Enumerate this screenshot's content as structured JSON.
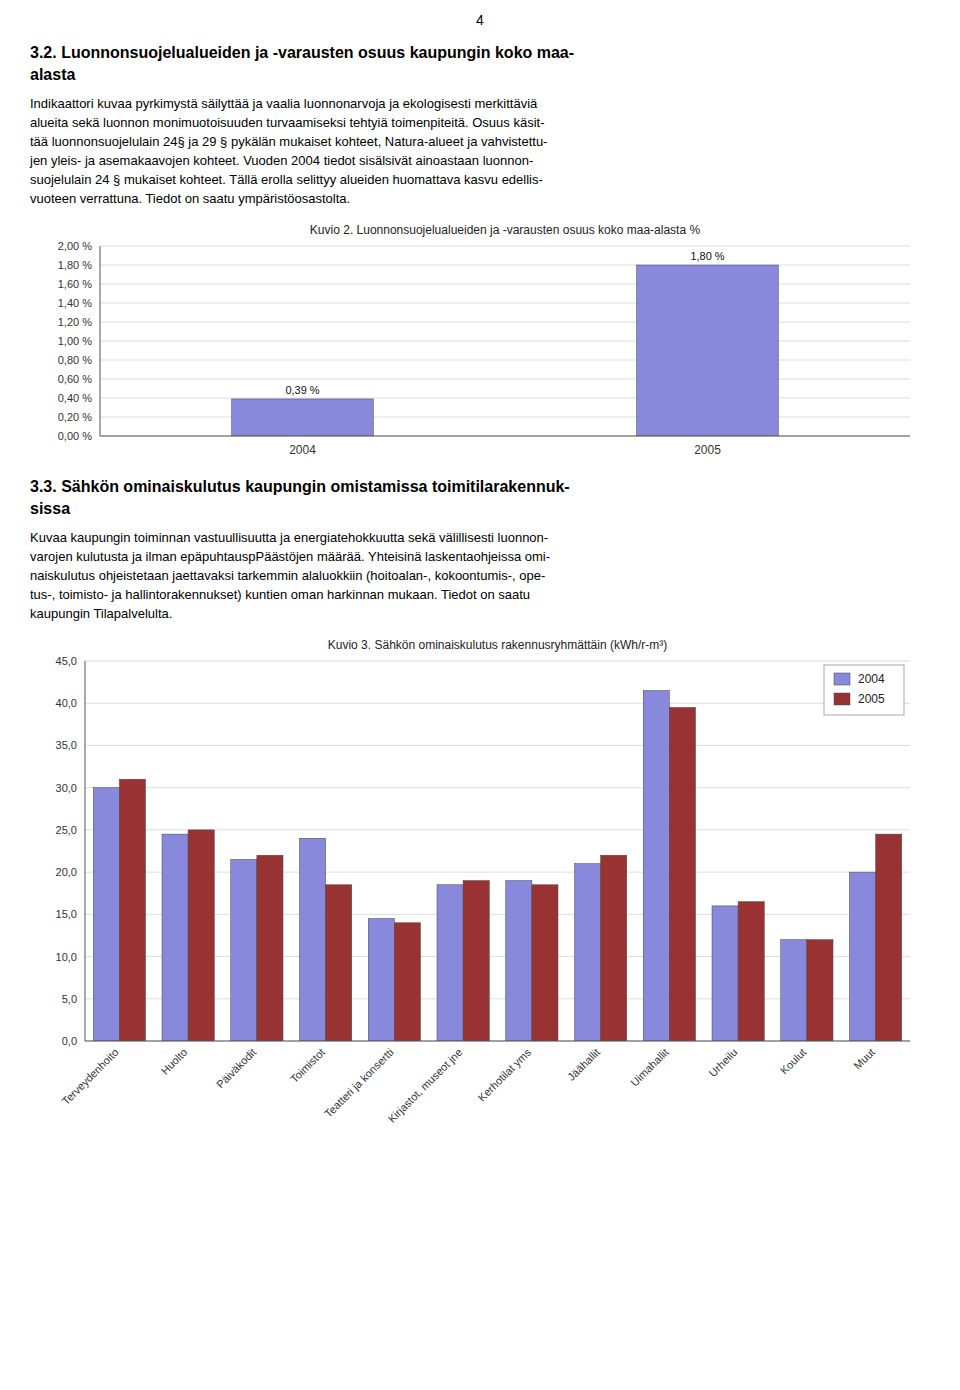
{
  "page_number": "4",
  "sections": [
    {
      "title_lines": [
        "3.2. Luonnonsuojelualueiden ja -varausten osuus kaupungin koko maa-",
        "alasta"
      ],
      "body_lines": [
        "Indikaattori kuvaa pyrkimystä säilyttää ja vaalia luonnonarvoja ja ekologisesti merkittäviä",
        "alueita sekä luonnon monimuotoisuuden turvaamiseksi tehtyiä toimenpiteitä. Osuus käsit-",
        "tää luonnonsuojelulain 24§ ja 29 § pykälän mukaiset kohteet, Natura-alueet ja vahvistettu-",
        "jen yleis- ja asemakaavojen kohteet. Vuoden 2004 tiedot sisälsivät ainoastaan luonnon-",
        "suojelulain 24 § mukaiset kohteet. Tällä erolla selittyy alueiden huomattava kasvu edellis-",
        "vuoteen verrattuna. Tiedot on saatu ympäristöosastolta."
      ]
    },
    {
      "title_lines": [
        "3.3. Sähkön ominaiskulutus kaupungin omistamissa toimitilarakennuk-",
        "sissa"
      ],
      "body_lines": [
        "Kuvaa kaupungin toiminnan vastuullisuutta ja energiatehokkuutta sekä välillisesti luonnon-",
        "varojen kulutusta ja ilman epäpuhtauspPäästöjen määrää. Yhteisinä laskentaohjeissa omi-",
        "naiskulutus ohjeistetaan jaettavaksi tarkemmin alaluokkiin (hoitoalan-, kokoontumis-, ope-",
        "tus-, toimisto- ja hallintorakennukset) kuntien oman harkinnan mukaan. Tiedot on saatu",
        "kaupungin Tilapalvelulta."
      ]
    }
  ],
  "chart_data": [
    {
      "type": "bar",
      "title": "Kuvio 2. Luonnonsuojelualueiden ja -varausten osuus koko maa-alasta %",
      "categories": [
        "2004",
        "2005"
      ],
      "values": [
        0.39,
        1.8
      ],
      "value_labels": [
        "0,39 %",
        "1,80 %"
      ],
      "data_labels": true,
      "color": "#8888dd",
      "ylim": [
        0.0,
        2.0
      ],
      "yticks": [
        {
          "value": 0.0,
          "label": "0,00 %"
        },
        {
          "value": 0.2,
          "label": "0,20 %"
        },
        {
          "value": 0.4,
          "label": "0,40 %"
        },
        {
          "value": 0.6,
          "label": "0,60 %"
        },
        {
          "value": 0.8,
          "label": "0,80 %"
        },
        {
          "value": 1.0,
          "label": "1,00 %"
        },
        {
          "value": 1.2,
          "label": "1,20 %"
        },
        {
          "value": 1.4,
          "label": "1,40 %"
        },
        {
          "value": 1.6,
          "label": "1,60 %"
        },
        {
          "value": 1.8,
          "label": "1,80 %"
        },
        {
          "value": 2.0,
          "label": "2,00 %"
        }
      ],
      "grid": true
    },
    {
      "type": "bar",
      "title": "Kuvio 3. Sähkön ominaiskulutus rakennusryhmättäin (kWh/r-m³)",
      "categories": [
        "Terveydenhoito",
        "Huolto",
        "Päiväkodit",
        "Toimistot",
        "Teatteri ja konsertti",
        "Kirjastot, museot jne",
        "Kerhotilat yms",
        "Jäähallit",
        "Uimahallit",
        "Urheilu",
        "Koulut",
        "Muut"
      ],
      "series": [
        {
          "name": "2004",
          "color": "#8888dd",
          "values": [
            30.0,
            24.5,
            21.5,
            24.0,
            14.5,
            18.5,
            19.0,
            21.0,
            41.5,
            16.0,
            12.0,
            20.0
          ]
        },
        {
          "name": "2005",
          "color": "#993333",
          "values": [
            31.0,
            25.0,
            22.0,
            18.5,
            14.0,
            19.0,
            18.5,
            22.0,
            39.5,
            16.5,
            12.0,
            24.5
          ]
        }
      ],
      "ylim": [
        0.0,
        45.0
      ],
      "yticks": [
        {
          "value": 0.0,
          "label": "0,0"
        },
        {
          "value": 5.0,
          "label": "5,0"
        },
        {
          "value": 10.0,
          "label": "10,0"
        },
        {
          "value": 15.0,
          "label": "15,0"
        },
        {
          "value": 20.0,
          "label": "20,0"
        },
        {
          "value": 25.0,
          "label": "25,0"
        },
        {
          "value": 30.0,
          "label": "30,0"
        },
        {
          "value": 35.0,
          "label": "35,0"
        },
        {
          "value": 40.0,
          "label": "40,0"
        },
        {
          "value": 45.0,
          "label": "45,0"
        }
      ],
      "grid": true,
      "legend": "upper right"
    }
  ]
}
